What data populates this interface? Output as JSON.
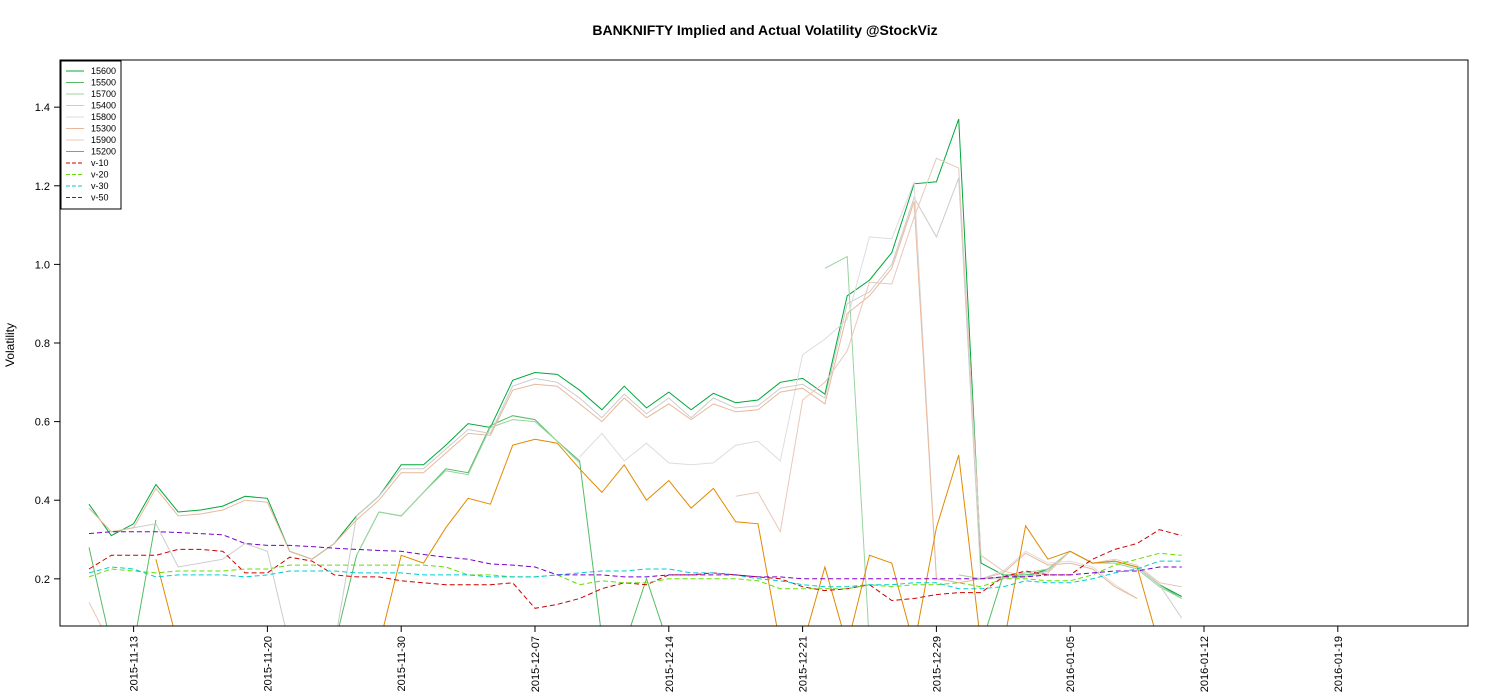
{
  "chart_data": {
    "type": "line",
    "title": "BANKNIFTY Implied and Actual Volatility @StockViz",
    "xlabel": "",
    "ylabel": "Volatility",
    "ylim": [
      0.08,
      1.52
    ],
    "xlim": [
      0,
      59
    ],
    "yticks": [
      0.2,
      0.4,
      0.6,
      0.8,
      1.0,
      1.2,
      1.4
    ],
    "ytick_labels": [
      "0.2",
      "0.4",
      "0.6",
      "0.8",
      "1.0",
      "1.2",
      "1.4"
    ],
    "xticks": [
      {
        "i": 2,
        "label": "2015-11-13"
      },
      {
        "i": 8,
        "label": "2015-11-20"
      },
      {
        "i": 14,
        "label": "2015-11-30"
      },
      {
        "i": 20,
        "label": "2015-12-07"
      },
      {
        "i": 26,
        "label": "2015-12-14"
      },
      {
        "i": 32,
        "label": "2015-12-21"
      },
      {
        "i": 38,
        "label": "2015-12-29"
      },
      {
        "i": 44,
        "label": "2016-01-05"
      },
      {
        "i": 50,
        "label": "2016-01-12"
      },
      {
        "i": 56,
        "label": "2016-01-19"
      }
    ],
    "grid": false,
    "legend_position": "top-left",
    "series": [
      {
        "name": "15600",
        "color": "#00a83a",
        "dash": "",
        "values": [
          0.39,
          0.31,
          0.34,
          0.44,
          0.37,
          0.375,
          0.385,
          0.41,
          0.405,
          0.27,
          0.25,
          0.29,
          0.36,
          0.41,
          0.49,
          0.49,
          0.54,
          0.595,
          0.585,
          0.705,
          0.725,
          0.72,
          0.68,
          0.63,
          0.69,
          0.635,
          0.675,
          0.63,
          0.672,
          0.648,
          0.655,
          0.7,
          0.71,
          0.67,
          0.92,
          0.96,
          1.03,
          1.205,
          1.21,
          1.37,
          0.24,
          0.21,
          0.205,
          0.225,
          0.27,
          0.24,
          0.245,
          0.23,
          0.185,
          0.155
        ]
      },
      {
        "name": "15500",
        "color": "#55bb66",
        "dash": "",
        "values": [
          0.28,
          0.03,
          0.03,
          0.35,
          null,
          null,
          null,
          null,
          null,
          null,
          0.03,
          0.03,
          0.26,
          0.37,
          0.36,
          0.42,
          0.48,
          0.47,
          0.59,
          0.615,
          0.605,
          0.55,
          0.5,
          0.05,
          0.03,
          0.2,
          0.03,
          0.03,
          0.03,
          0.03,
          0.03,
          0.03,
          0.03,
          0.03,
          0.03,
          0.03,
          0.03,
          0.03,
          0.03,
          0.03,
          0.03,
          0.21,
          0.21,
          0.22,
          0.27,
          0.24,
          0.245,
          0.23,
          0.185,
          0.15
        ]
      },
      {
        "name": "15700",
        "color": "#99d4a0",
        "dash": "",
        "values": [
          null,
          null,
          null,
          null,
          null,
          null,
          null,
          null,
          null,
          null,
          null,
          null,
          0.26,
          0.37,
          0.36,
          0.42,
          0.475,
          0.465,
          0.585,
          0.605,
          0.6,
          0.55,
          0.495,
          null,
          null,
          null,
          null,
          null,
          null,
          null,
          null,
          null,
          null,
          0.99,
          1.02,
          0.03,
          0.03,
          null,
          null,
          0.21,
          0.2,
          0.205,
          0.215,
          0.225,
          0.27,
          0.24,
          0.24,
          0.225,
          0.18,
          0.15
        ]
      },
      {
        "name": "15400",
        "color": "#cccccc",
        "dash": "",
        "values": [
          0.38,
          0.32,
          0.33,
          0.34,
          0.23,
          0.24,
          0.25,
          0.29,
          0.27,
          0.03,
          0.03,
          0.03,
          0.36,
          0.41,
          0.48,
          0.48,
          0.53,
          0.58,
          0.57,
          0.69,
          0.71,
          0.7,
          0.66,
          0.61,
          0.67,
          0.62,
          0.66,
          0.61,
          0.66,
          0.635,
          0.64,
          0.685,
          0.695,
          0.66,
          0.9,
          0.93,
          1.0,
          1.17,
          1.07,
          1.22,
          0.2,
          0.2,
          0.205,
          0.22,
          0.27,
          0.24,
          0.245,
          0.23,
          0.185,
          0.1
        ]
      },
      {
        "name": "15800",
        "color": "#dddddd",
        "dash": "",
        "values": [
          null,
          null,
          null,
          null,
          null,
          null,
          null,
          null,
          null,
          null,
          null,
          null,
          null,
          null,
          null,
          null,
          null,
          null,
          null,
          null,
          null,
          null,
          0.51,
          0.57,
          0.5,
          0.545,
          0.495,
          0.49,
          0.495,
          0.54,
          0.55,
          0.5,
          0.77,
          0.81,
          0.86,
          1.07,
          1.065,
          1.21,
          0.2,
          0.19,
          0.2,
          0.22,
          0.27,
          0.24,
          0.245,
          0.23,
          0.185,
          0.15,
          null,
          null
        ]
      },
      {
        "name": "15300",
        "color": "#e8b89c",
        "dash": "",
        "values": [
          0.38,
          0.32,
          0.33,
          0.43,
          0.36,
          0.365,
          0.375,
          0.4,
          0.395,
          0.27,
          0.25,
          0.29,
          0.35,
          0.4,
          0.47,
          0.47,
          0.52,
          0.57,
          0.565,
          0.68,
          0.695,
          0.69,
          0.645,
          0.6,
          0.66,
          0.61,
          0.645,
          0.605,
          0.645,
          0.625,
          0.63,
          0.675,
          0.685,
          0.645,
          0.875,
          0.92,
          0.99,
          1.16,
          0.2,
          0.19,
          0.2,
          0.215,
          0.265,
          0.235,
          0.24,
          0.225,
          0.18,
          0.15,
          null,
          null
        ]
      },
      {
        "name": "15900",
        "color": "#e8c8b8",
        "dash": "",
        "values": [
          0.14,
          0.03,
          0.03,
          null,
          null,
          null,
          null,
          null,
          null,
          null,
          null,
          null,
          null,
          null,
          null,
          null,
          null,
          null,
          null,
          null,
          null,
          null,
          null,
          null,
          null,
          null,
          null,
          null,
          null,
          0.41,
          0.42,
          0.32,
          0.655,
          0.7,
          0.78,
          0.955,
          0.95,
          1.12,
          1.27,
          1.245,
          0.26,
          0.22,
          0.205,
          0.215,
          0.27,
          0.24,
          0.25,
          0.235,
          0.19,
          0.18
        ]
      },
      {
        "name": "15200",
        "color": "#e08a00",
        "dash": "",
        "values": [
          null,
          null,
          null,
          0.25,
          0.03,
          null,
          null,
          null,
          null,
          null,
          null,
          null,
          null,
          0.03,
          0.26,
          0.24,
          0.33,
          0.405,
          0.39,
          0.54,
          0.555,
          0.545,
          0.48,
          0.42,
          0.49,
          0.4,
          0.45,
          0.38,
          0.43,
          0.345,
          0.34,
          0.03,
          0.03,
          0.23,
          0.03,
          0.26,
          0.24,
          0.03,
          0.33,
          0.515,
          0.03,
          0.03,
          0.335,
          0.25,
          0.27,
          0.24,
          0.245,
          0.23,
          0.03,
          0.03
        ]
      },
      {
        "name": "v-10",
        "color": "#cc0000",
        "dash": "5,3",
        "values": [
          0.225,
          0.26,
          0.26,
          0.26,
          0.275,
          0.275,
          0.27,
          0.215,
          0.215,
          0.255,
          0.245,
          0.21,
          0.205,
          0.205,
          0.195,
          0.19,
          0.185,
          0.185,
          0.185,
          0.19,
          0.125,
          0.135,
          0.15,
          0.175,
          0.19,
          0.185,
          0.21,
          0.21,
          0.215,
          0.21,
          0.205,
          0.2,
          0.18,
          0.17,
          0.175,
          0.185,
          0.145,
          0.15,
          0.16,
          0.165,
          0.165,
          0.205,
          0.22,
          0.21,
          0.21,
          0.25,
          0.275,
          0.29,
          0.325,
          0.31
        ]
      },
      {
        "name": "v-20",
        "color": "#66dd00",
        "dash": "5,3",
        "values": [
          0.205,
          0.225,
          0.22,
          0.215,
          0.22,
          0.22,
          0.22,
          0.225,
          0.225,
          0.235,
          0.235,
          0.235,
          0.235,
          0.235,
          0.235,
          0.235,
          0.23,
          0.21,
          0.21,
          0.205,
          0.205,
          0.21,
          0.185,
          0.195,
          0.19,
          0.19,
          0.2,
          0.2,
          0.2,
          0.2,
          0.195,
          0.175,
          0.175,
          0.175,
          0.175,
          0.185,
          0.18,
          0.185,
          0.185,
          0.19,
          0.18,
          0.2,
          0.2,
          0.195,
          0.195,
          0.21,
          0.235,
          0.25,
          0.265,
          0.26
        ]
      },
      {
        "name": "v-30",
        "color": "#00cccc",
        "dash": "5,3",
        "values": [
          0.215,
          0.23,
          0.225,
          0.205,
          0.21,
          0.21,
          0.21,
          0.205,
          0.21,
          0.22,
          0.22,
          0.22,
          0.215,
          0.215,
          0.215,
          0.21,
          0.21,
          0.21,
          0.205,
          0.205,
          0.205,
          0.21,
          0.215,
          0.22,
          0.22,
          0.225,
          0.225,
          0.215,
          0.215,
          0.21,
          0.2,
          0.195,
          0.185,
          0.18,
          0.18,
          0.185,
          0.185,
          0.19,
          0.19,
          0.175,
          0.175,
          0.18,
          0.195,
          0.19,
          0.19,
          0.2,
          0.215,
          0.225,
          0.245,
          0.245
        ]
      },
      {
        "name": "v-50",
        "color": "#7700cc",
        "dash": "5,3",
        "values": [
          0.315,
          0.32,
          0.32,
          0.32,
          0.318,
          0.315,
          0.312,
          0.29,
          0.285,
          0.285,
          0.282,
          0.278,
          0.275,
          0.272,
          0.27,
          0.262,
          0.255,
          0.25,
          0.238,
          0.235,
          0.23,
          0.21,
          0.21,
          0.21,
          0.205,
          0.205,
          0.21,
          0.21,
          0.21,
          0.21,
          0.205,
          0.205,
          0.2,
          0.2,
          0.2,
          0.2,
          0.2,
          0.2,
          0.2,
          0.2,
          0.2,
          0.205,
          0.205,
          0.21,
          0.21,
          0.215,
          0.22,
          0.22,
          0.23,
          0.23
        ]
      }
    ]
  }
}
